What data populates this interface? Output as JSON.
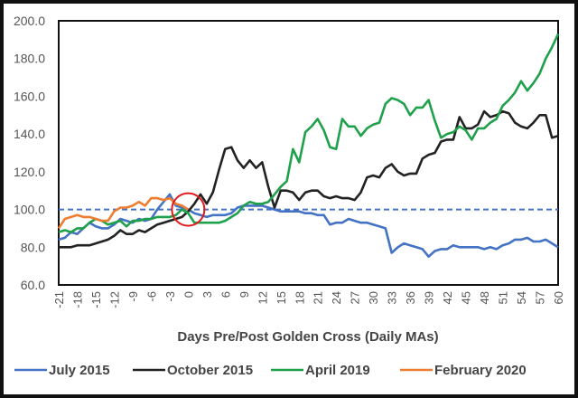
{
  "chart_data": {
    "type": "line",
    "title": "",
    "xlabel": "Days Pre/Post Golden Cross (Daily MAs)",
    "ylabel": "",
    "xlim": [
      -21,
      60
    ],
    "ylim": [
      60,
      200
    ],
    "yticks": [
      "60.0",
      "80.0",
      "100.0",
      "120.0",
      "140.0",
      "160.0",
      "180.0",
      "200.0"
    ],
    "xticks": [
      "-21",
      "-18",
      "-15",
      "-12",
      "-9",
      "-6",
      "-3",
      "0",
      "3",
      "6",
      "9",
      "12",
      "15",
      "18",
      "21",
      "24",
      "27",
      "30",
      "33",
      "36",
      "39",
      "42",
      "45",
      "48",
      "51",
      "54",
      "57",
      "60"
    ],
    "reference_line": {
      "value": 100,
      "style": "dashed",
      "color": "#4472C4"
    },
    "annotation": {
      "type": "circle",
      "x": 0,
      "y": 100,
      "color": "#E31A1C"
    },
    "legend_position": "bottom",
    "x_start": -21,
    "series": [
      {
        "name": "July 2015",
        "color": "#4472C4",
        "values": [
          84,
          85,
          88,
          87,
          90,
          93,
          91,
          90,
          90,
          92,
          95,
          94,
          93,
          95,
          94,
          95,
          100,
          104,
          108,
          102,
          101,
          100,
          98,
          97,
          96,
          97,
          97,
          97,
          98,
          101,
          102,
          102,
          102,
          102,
          101,
          100,
          99,
          99,
          99,
          99,
          98,
          98,
          97,
          97,
          92,
          93,
          93,
          95,
          94,
          93,
          93,
          92,
          91,
          90,
          77,
          80,
          82,
          81,
          80,
          79,
          75,
          78,
          79,
          79,
          81,
          80,
          80,
          80,
          80,
          79,
          80,
          79,
          81,
          82,
          84,
          84,
          85,
          83,
          83,
          84,
          82,
          80
        ]
      },
      {
        "name": "October 2015",
        "color": "#222222",
        "values": [
          80,
          80,
          80,
          81,
          81,
          81,
          82,
          83,
          84,
          86,
          89,
          87,
          87,
          89,
          88,
          90,
          92,
          93,
          94,
          95,
          96,
          99,
          103,
          108,
          103,
          109,
          121,
          132,
          133,
          126,
          122,
          126,
          122,
          125,
          112,
          101,
          110,
          110,
          109,
          105,
          109,
          110,
          110,
          107,
          106,
          107,
          106,
          106,
          105,
          109,
          117,
          118,
          117,
          122,
          124,
          120,
          118,
          119,
          119,
          127,
          129,
          130,
          136,
          137,
          137,
          149,
          143,
          143,
          145,
          152,
          149,
          150,
          152,
          151,
          146,
          144,
          143,
          146,
          150,
          150,
          138,
          139
        ]
      },
      {
        "name": "April 2019",
        "color": "#1FA04A",
        "values": [
          88,
          89,
          88,
          90,
          90,
          93,
          95,
          94,
          92,
          93,
          94,
          91,
          94,
          94,
          95,
          95,
          96,
          96,
          96,
          97,
          100,
          98,
          93,
          93,
          93,
          93,
          93,
          94,
          96,
          98,
          102,
          104,
          103,
          103,
          104,
          108,
          112,
          115,
          132,
          125,
          141,
          144,
          148,
          142,
          133,
          132,
          148,
          144,
          144,
          139,
          143,
          145,
          146,
          156,
          159,
          158,
          156,
          150,
          154,
          154,
          158,
          147,
          138,
          140,
          141,
          144,
          142,
          137,
          143,
          143,
          146,
          148,
          155,
          158,
          162,
          168,
          163,
          167,
          172,
          180,
          186,
          193
        ]
      },
      {
        "name": "February 2020",
        "color": "#ED7D31",
        "values": [
          90,
          95,
          96,
          97,
          96,
          96,
          95,
          94,
          94,
          99,
          101,
          101,
          102,
          104,
          102,
          106,
          106,
          105,
          106,
          103,
          102,
          100
        ]
      }
    ]
  }
}
